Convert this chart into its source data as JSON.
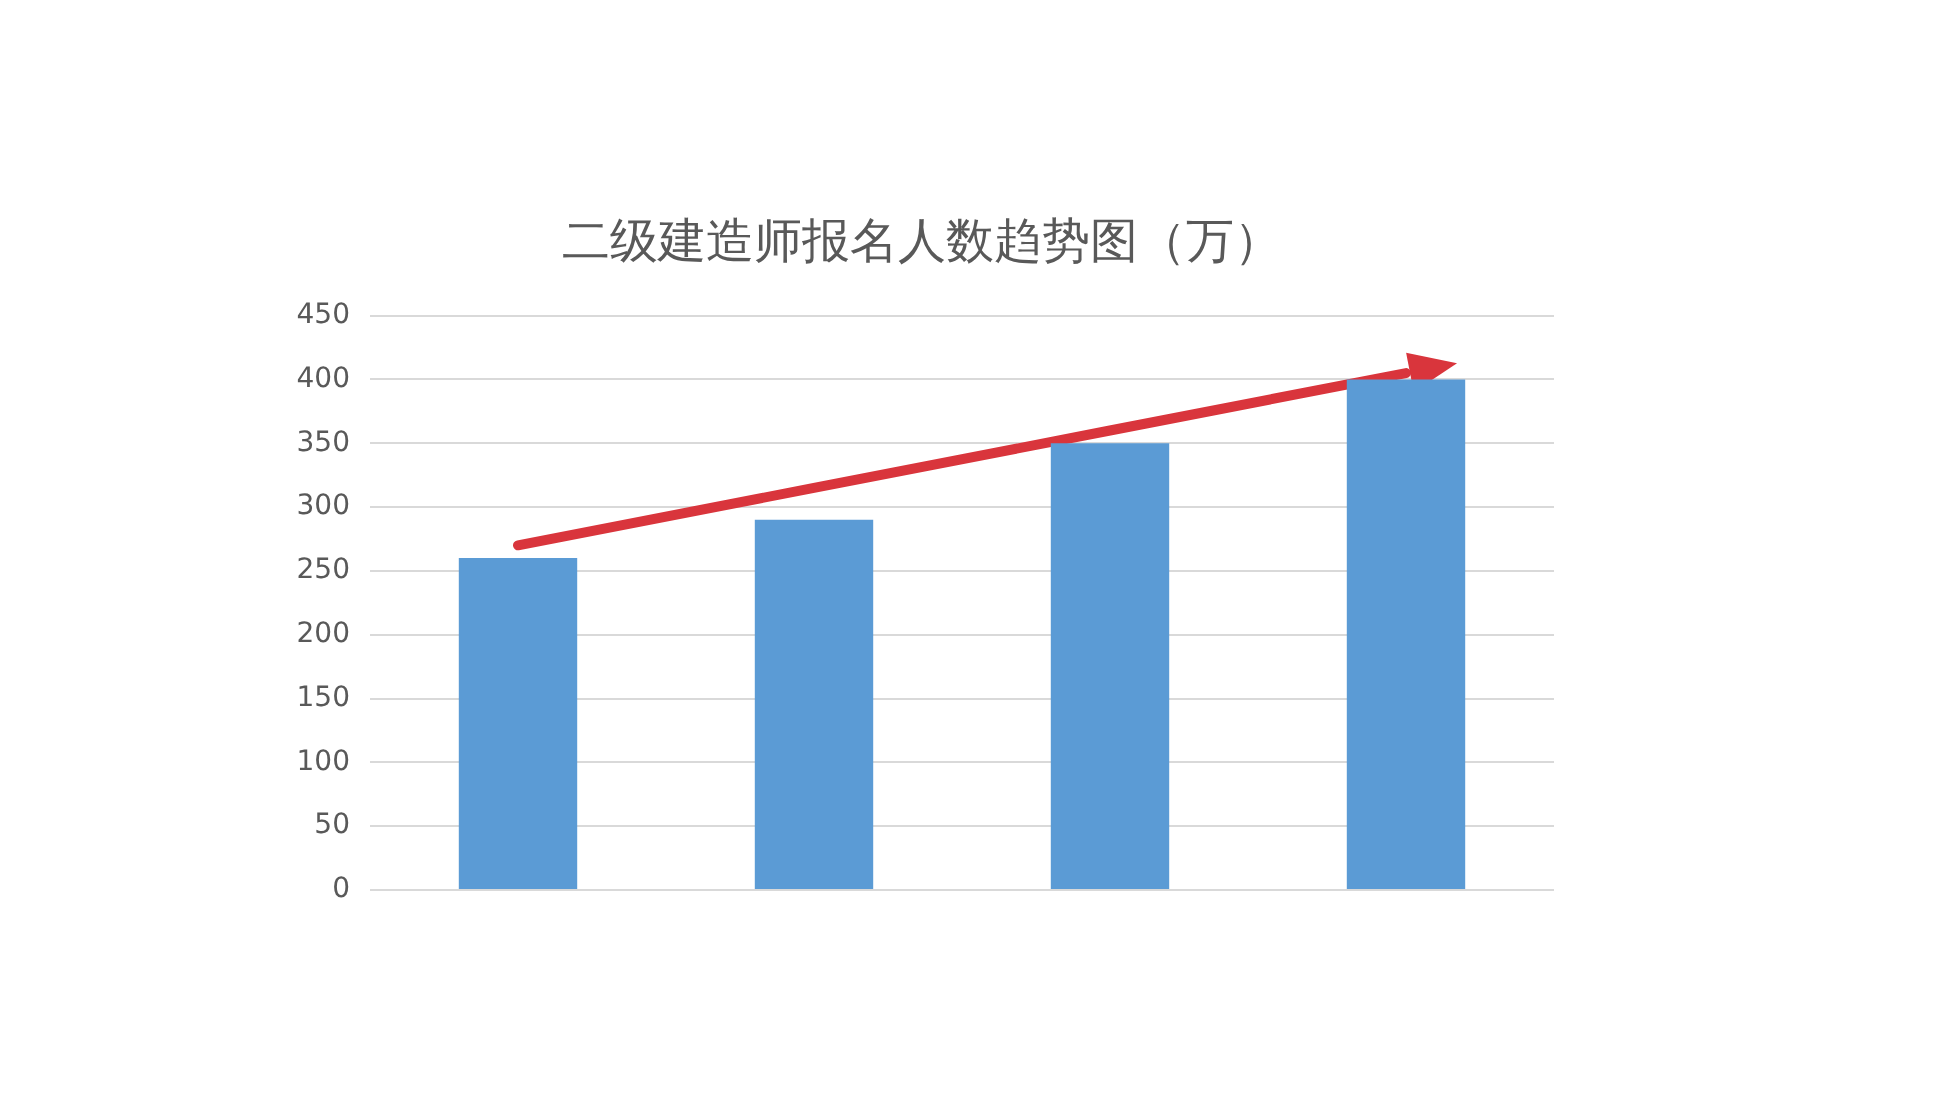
{
  "chart_data": {
    "type": "bar",
    "title": "二级建造师报名人数趋势图（万）",
    "categories": [
      null,
      null,
      null,
      null
    ],
    "series": [
      {
        "color": "#5b9bd5",
        "values": [
          260,
          290,
          350,
          400
        ]
      },
      {
        "type": "line",
        "color": "#d9353c",
        "values": [
          270,
          315,
          360,
          405
        ]
      }
    ],
    "ylim": [
      0,
      450
    ],
    "yticks": [
      0,
      50,
      100,
      150,
      200,
      250,
      300,
      350,
      400,
      450
    ],
    "grid": "y",
    "tick_labels": "y",
    "marker": "none"
  }
}
